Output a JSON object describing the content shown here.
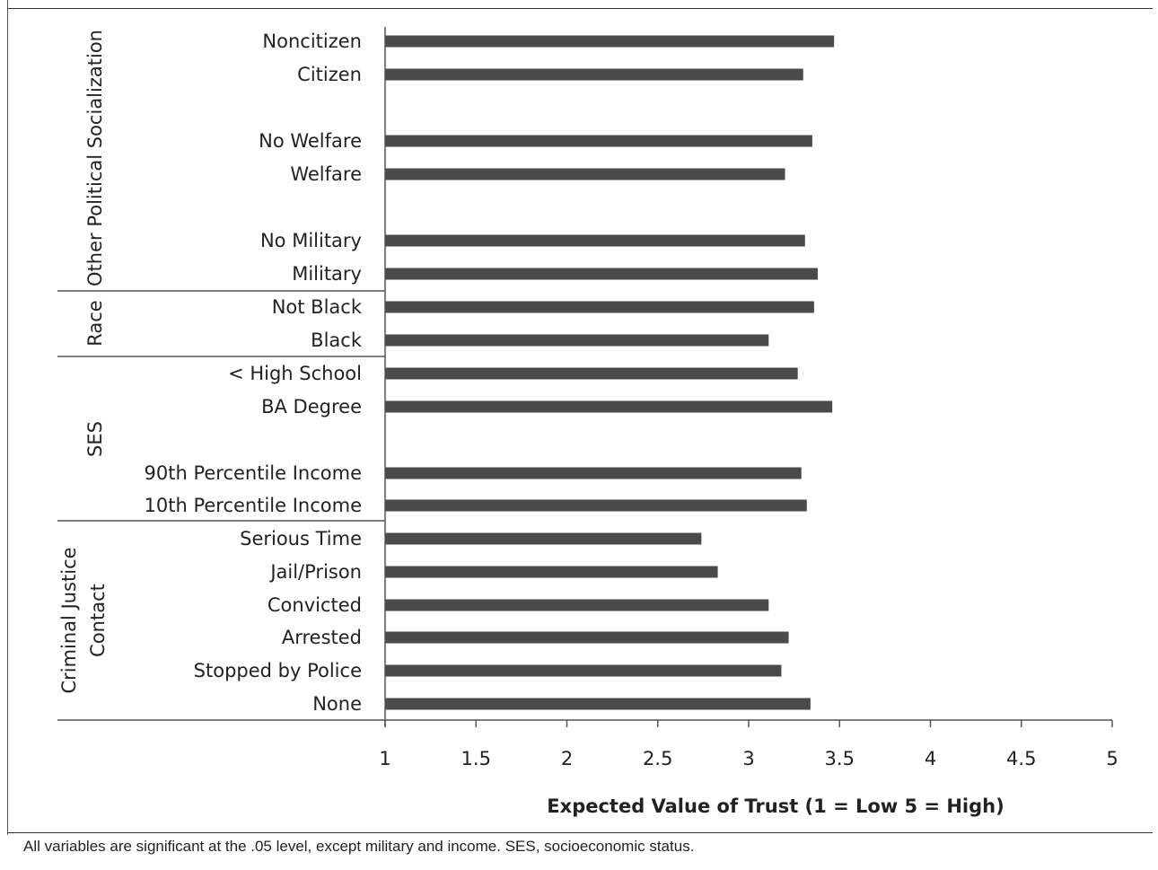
{
  "chart_data": {
    "type": "bar",
    "orientation": "horizontal",
    "categories": [
      "Noncitizen",
      "Citizen",
      "No Welfare",
      "Welfare",
      "No Military",
      "Military",
      "Not Black",
      "Black",
      "< High School",
      "BA Degree",
      "90th Percentile Income",
      "10th Percentile Income",
      "Serious Time",
      "Jail/Prison",
      "Convicted",
      "Arrested",
      "Stopped by Police",
      "None"
    ],
    "values": [
      3.47,
      3.3,
      3.35,
      3.2,
      3.31,
      3.38,
      3.36,
      3.11,
      3.27,
      3.46,
      3.29,
      3.32,
      2.74,
      2.83,
      3.11,
      3.22,
      3.18,
      3.34
    ],
    "groups": [
      {
        "name": "Other Political Socialization",
        "categories": [
          "Noncitizen",
          "Citizen",
          "No Welfare",
          "Welfare",
          "No Military",
          "Military"
        ]
      },
      {
        "name": "Race",
        "categories": [
          "Not Black",
          "Black"
        ]
      },
      {
        "name": "SES",
        "categories": [
          "< High School",
          "BA Degree",
          "90th Percentile Income",
          "10th Percentile Income"
        ]
      },
      {
        "name": "Criminal Justice Contact",
        "categories": [
          "Serious Time",
          "Jail/Prison",
          "Convicted",
          "Arrested",
          "Stopped by Police",
          "None"
        ]
      }
    ],
    "group_lines": {
      "Criminal Justice Contact": [
        "Criminal  Justice",
        "Contact"
      ]
    },
    "xlabel": "Expected Value of Trust (1 =  Low 5 = High)",
    "ylabel": "",
    "xlim": [
      1,
      5
    ],
    "xticks": [
      "1",
      "1.5",
      "2",
      "2.5",
      "3",
      "3.5",
      "4",
      "4.5",
      "5"
    ],
    "grid": false,
    "colors": {
      "bar": "#4a4a4a",
      "axis": "#555555",
      "text": "#222222"
    }
  },
  "note": "All variables are significant at the .05 level, except military and income. SES, socioeconomic status."
}
